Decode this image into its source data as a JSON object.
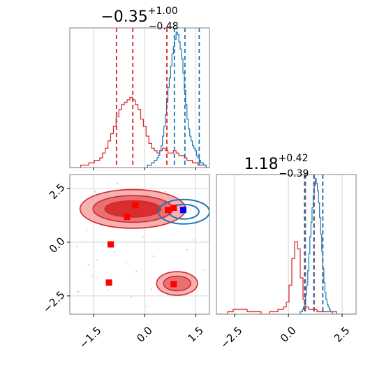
{
  "colors": {
    "red": "#d62728",
    "blue": "#1f77b4",
    "red_fill": "#f2a5a6",
    "red_fill_mid": "#e8696b",
    "blue_marker": "#0000ff",
    "red_marker": "#ff0000",
    "grid": "#c8c8c8",
    "frame": "#7f7f7f"
  },
  "chart_data": [
    {
      "type": "histogram",
      "panel": "marginal-x",
      "title": {
        "value": "−0.35",
        "sup": "+1.00",
        "sub": "−0.48"
      },
      "xlim": [
        -2.2,
        1.9
      ],
      "grid": true,
      "series": [
        {
          "name": "",
          "color": "#d62728",
          "x_start": -2.2,
          "bin_width": 0.08,
          "counts": [
            0,
            0,
            0,
            0,
            1,
            1,
            1,
            2,
            2,
            3,
            3,
            4,
            6,
            8,
            11,
            14,
            17,
            21,
            24,
            26,
            27,
            28,
            29,
            28,
            26,
            24,
            20,
            17,
            13,
            10,
            8,
            7,
            6,
            7,
            8,
            7,
            6,
            6,
            7,
            6,
            5,
            5,
            4,
            3,
            3,
            2,
            2,
            1,
            1,
            1,
            0,
            0
          ]
        },
        {
          "name": "",
          "color": "#1f77b4",
          "x_start": 0.0,
          "bin_width": 0.04,
          "counts": [
            0,
            0,
            1,
            1,
            1,
            2,
            2,
            3,
            3,
            4,
            5,
            7,
            9,
            13,
            17,
            22,
            27,
            33,
            37,
            42,
            47,
            50,
            53,
            56,
            55,
            52,
            49,
            45,
            39,
            32,
            26,
            20,
            16,
            13,
            11,
            9,
            8,
            7,
            5,
            4,
            3,
            2,
            2,
            1,
            1,
            0,
            0,
            0
          ]
        }
      ],
      "quantile_lines": [
        {
          "color": "#d62728",
          "x": [
            -0.83,
            -0.35,
            0.65
          ]
        },
        {
          "color": "#1f77b4",
          "x": [
            0.87,
            1.18,
            1.6
          ]
        }
      ]
    },
    {
      "type": "contour",
      "panel": "joint",
      "xlim": [
        -2.2,
        1.9
      ],
      "ylim": [
        -3.35,
        3.15
      ],
      "xticks": [
        -1.5,
        0.0,
        1.5
      ],
      "xtick_labels": [
        "−1.5",
        "0.0",
        "1.5"
      ],
      "yticks": [
        2.5,
        0.0,
        -2.5
      ],
      "ytick_labels": [
        "2.5",
        "0.0",
        "−2.5"
      ],
      "grid": true,
      "red_levels": [
        {
          "center": [
            -0.35,
            1.55
          ],
          "radii": [
            [
              1.55,
              0.9
            ],
            [
              1.17,
              0.62
            ],
            [
              0.82,
              0.38
            ]
          ]
        },
        {
          "center": [
            0.95,
            -1.92
          ],
          "radii": [
            [
              0.6,
              0.55
            ],
            [
              0.4,
              0.34
            ]
          ]
        }
      ],
      "blue_levels": [
        {
          "center": [
            1.15,
            1.42
          ],
          "radii": [
            [
              0.75,
              0.57
            ],
            [
              0.44,
              0.34
            ]
          ]
        }
      ],
      "red_markers": [
        [
          -0.28,
          1.72
        ],
        [
          -0.52,
          1.18
        ],
        [
          0.68,
          1.5
        ],
        [
          0.85,
          1.6
        ],
        [
          -1.0,
          -0.1
        ],
        [
          -1.05,
          -1.88
        ],
        [
          0.85,
          -1.95
        ]
      ],
      "blue_markers": [
        [
          1.13,
          1.5
        ]
      ],
      "scatter_points": [
        [
          -1.65,
          -1.05
        ],
        [
          -1.4,
          -0.85
        ],
        [
          -1.7,
          0.55
        ],
        [
          -1.45,
          2.35
        ],
        [
          -1.1,
          -2.25
        ],
        [
          -0.55,
          -0.95
        ],
        [
          -0.25,
          -1.35
        ],
        [
          -0.05,
          0.25
        ],
        [
          0.25,
          -0.65
        ],
        [
          -1.85,
          1.55
        ],
        [
          -2.0,
          -0.2
        ],
        [
          1.45,
          0.1
        ],
        [
          -0.8,
          2.75
        ],
        [
          0.6,
          2.35
        ],
        [
          -1.3,
          0.95
        ],
        [
          -0.4,
          -2.55
        ],
        [
          0.05,
          -3.0
        ],
        [
          1.75,
          -1.3
        ],
        [
          -1.55,
          -1.6
        ],
        [
          0.4,
          0.8
        ],
        [
          -0.9,
          -0.45
        ],
        [
          1.25,
          -0.35
        ],
        [
          -1.95,
          -2.3
        ],
        [
          0.2,
          -2.2
        ]
      ]
    },
    {
      "type": "histogram",
      "panel": "marginal-y",
      "title": {
        "value": "1.18",
        "sup": "+0.42",
        "sub": "−0.39"
      },
      "xlim": [
        -3.35,
        3.15
      ],
      "xticks": [
        -2.5,
        0.0,
        2.5
      ],
      "xtick_labels": [
        "−2.5",
        "0.0",
        "2.5"
      ],
      "grid": true,
      "series": [
        {
          "name": "",
          "color": "#d62728",
          "x_start": -3.35,
          "bin_width": 0.13,
          "counts": [
            0,
            0,
            0,
            0,
            1,
            1,
            2,
            2,
            2,
            2,
            2,
            1,
            1,
            1,
            1,
            1,
            0,
            0,
            0,
            1,
            1,
            1,
            2,
            2,
            3,
            5,
            12,
            23,
            30,
            27,
            15,
            6,
            3,
            2,
            2,
            2,
            1,
            1,
            1,
            1,
            1,
            1,
            1,
            0,
            0,
            0,
            0,
            0,
            0,
            0
          ]
        },
        {
          "name": "",
          "color": "#1f77b4",
          "x_start": 0.45,
          "bin_width": 0.05,
          "counts": [
            0,
            0,
            1,
            1,
            2,
            3,
            5,
            8,
            12,
            18,
            25,
            32,
            38,
            44,
            49,
            53,
            56,
            54,
            51,
            46,
            40,
            33,
            26,
            19,
            13,
            9,
            6,
            4,
            3,
            2,
            1,
            1,
            0,
            0
          ]
        }
      ],
      "quantile_lines": [
        {
          "color": "#d62728",
          "x": [
            0.75,
            1.2,
            1.6
          ]
        },
        {
          "color": "#1f77b4",
          "x": [
            0.79,
            1.18,
            1.6
          ]
        }
      ]
    }
  ]
}
